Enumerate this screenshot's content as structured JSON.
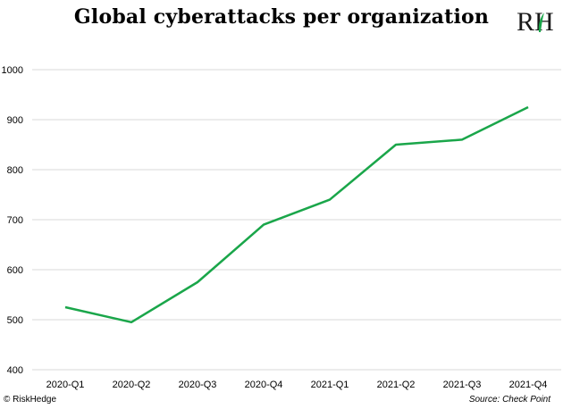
{
  "header": {
    "title": "Global cyberattacks per organization",
    "logo_text": "RH"
  },
  "footer": {
    "copyright": "© RiskHedge",
    "source": "Source: Check Point"
  },
  "colors": {
    "line": "#1aa64a",
    "grid": "#d9d9d9",
    "logo_accent": "#1aa64a"
  },
  "chart_data": {
    "type": "line",
    "title": "Global cyberattacks per organization",
    "xlabel": "",
    "ylabel": "",
    "categories": [
      "2020-Q1",
      "2020-Q2",
      "2020-Q3",
      "2020-Q4",
      "2021-Q1",
      "2021-Q2",
      "2021-Q3",
      "2021-Q4"
    ],
    "series": [
      {
        "values": [
          525,
          495,
          575,
          690,
          740,
          850,
          860,
          925
        ]
      }
    ],
    "ylim": [
      400,
      1000
    ],
    "yticks": [
      400,
      500,
      600,
      700,
      800,
      900,
      1000
    ],
    "grid": "horizontal",
    "legend": "none"
  }
}
